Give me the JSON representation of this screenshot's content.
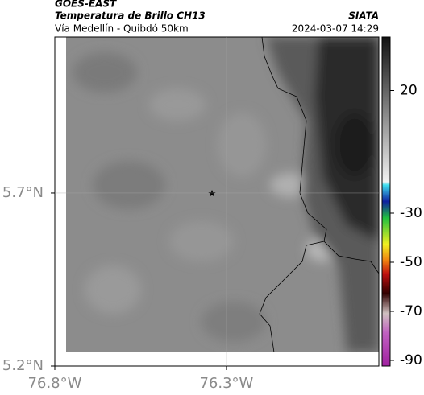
{
  "header": {
    "satellite": "GOES-EAST",
    "product": "Temperatura de Brillo CH13",
    "route": "Vía Medellín - Quibdó 50km",
    "source": "SIATA",
    "datetime": "2024-03-07 14:29"
  },
  "map": {
    "xlim": [
      -76.8,
      -75.856
    ],
    "ylim": [
      5.2,
      6.151
    ],
    "xticks": [
      {
        "value": -76.8,
        "label": "76.8°W"
      },
      {
        "value": -76.3,
        "label": "76.3°W"
      }
    ],
    "yticks": [
      {
        "value": 5.2,
        "label": "5.2°N"
      },
      {
        "value": 5.7,
        "label": "5.7°N"
      }
    ]
  },
  "colorbar": {
    "clim": [
      -92.3,
      41.8
    ],
    "ticks": [
      20,
      -30,
      -50,
      -70,
      -90
    ]
  }
}
